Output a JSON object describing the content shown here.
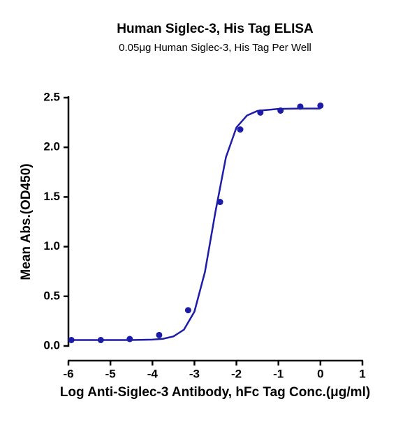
{
  "chart_data": {
    "type": "scatter",
    "title": "Human Siglec-3, His Tag ELISA",
    "subtitle": "0.05μg Human Siglec-3, His Tag Per Well",
    "x_label": "Log Anti-Siglec-3 Antibody, hFc Tag Conc.(μg/ml)",
    "y_label": "Mean Abs.(OD450)",
    "color": "#1c1ca8",
    "x": [
      -5.93,
      -5.23,
      -4.54,
      -3.84,
      -3.15,
      -2.39,
      -1.91,
      -1.43,
      -0.95,
      -0.48,
      0
    ],
    "values": [
      0.06,
      0.06,
      0.07,
      0.11,
      0.36,
      1.45,
      2.18,
      2.35,
      2.37,
      2.41,
      2.42
    ],
    "fit": {
      "x": [
        -6,
        -5.5,
        -5,
        -4.5,
        -4,
        -3.75,
        -3.5,
        -3.25,
        -3,
        -2.75,
        -2.5,
        -2.25,
        -2,
        -1.75,
        -1.5,
        -1,
        -0.5,
        0
      ],
      "values": [
        0.06,
        0.06,
        0.06,
        0.06,
        0.064,
        0.072,
        0.096,
        0.164,
        0.346,
        0.745,
        1.35,
        1.9,
        2.2,
        2.32,
        2.367,
        2.387,
        2.39,
        2.39
      ]
    },
    "xlim": [
      -6,
      1
    ],
    "ylim": [
      0,
      2.5
    ],
    "xticks": [
      -6,
      -5,
      -4,
      -3,
      -2,
      -1,
      0,
      1
    ],
    "yticks": [
      {
        "value": 0,
        "label": "0.0"
      },
      0.5,
      {
        "value": 1,
        "label": "1.0"
      },
      1.5,
      {
        "value": 2,
        "label": "2.0"
      },
      2.5
    ]
  }
}
